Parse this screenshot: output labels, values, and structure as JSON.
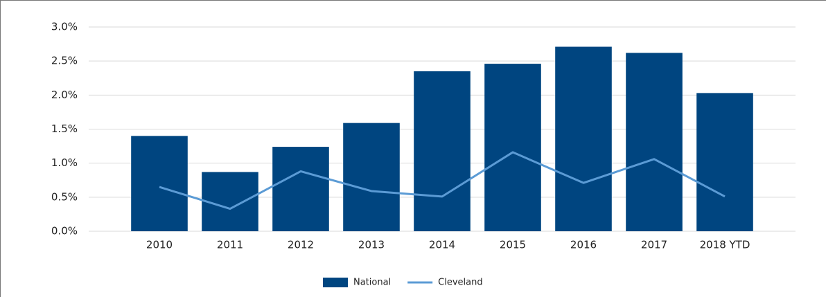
{
  "chart_data": {
    "type": "bar",
    "categories": [
      "2010",
      "2011",
      "2012",
      "2013",
      "2014",
      "2015",
      "2016",
      "2017",
      "2018 YTD"
    ],
    "series": [
      {
        "name": "National",
        "type": "bar",
        "color": "#004580",
        "values": [
          1.4,
          0.87,
          1.24,
          1.59,
          2.35,
          2.46,
          2.71,
          2.62,
          2.03
        ]
      },
      {
        "name": "Cleveland",
        "type": "line",
        "color": "#5b9bd5",
        "values": [
          0.65,
          0.33,
          0.88,
          0.59,
          0.51,
          1.16,
          0.71,
          1.06,
          0.51
        ]
      }
    ],
    "ylim": [
      0,
      3
    ],
    "yticks": [
      {
        "value": 0,
        "label": "0.0%"
      },
      {
        "value": 0.5,
        "label": "0.5%"
      },
      {
        "value": 1,
        "label": "1.0%"
      },
      {
        "value": 1.5,
        "label": "1.5%"
      },
      {
        "value": 2,
        "label": "2.0%"
      },
      {
        "value": 2.5,
        "label": "2.5%"
      },
      {
        "value": 3,
        "label": "3.0%"
      }
    ],
    "grid": true,
    "legend": "bottom"
  }
}
